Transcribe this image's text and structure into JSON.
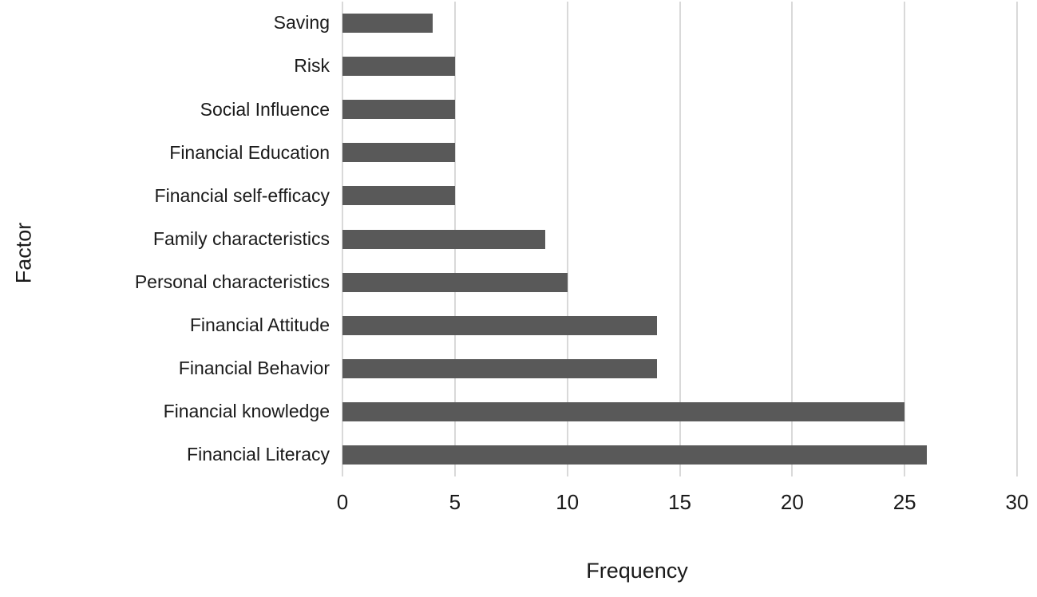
{
  "chart_data": {
    "type": "bar",
    "orientation": "horizontal",
    "title": "",
    "xlabel": "Frequency",
    "ylabel": "Factor",
    "xlim": [
      0,
      30
    ],
    "xticks": [
      0,
      5,
      10,
      15,
      20,
      25,
      30
    ],
    "grid": true,
    "legend": false,
    "category_order": "top-to-bottom",
    "categories": [
      "Saving",
      "Risk",
      "Social Influence",
      "Financial Education",
      "Financial self-efficacy",
      "Family characteristics",
      "Personal characteristics",
      "Financial Attitude",
      "Financial Behavior",
      "Financial knowledge",
      "Financial Literacy"
    ],
    "values": [
      4,
      5,
      5,
      5,
      5,
      9,
      10,
      14,
      14,
      25,
      26
    ],
    "colors": {
      "bar_fill": "#595959",
      "gridline": "#d9d9d9",
      "text": "#1a1a1a",
      "background": "#ffffff"
    }
  }
}
